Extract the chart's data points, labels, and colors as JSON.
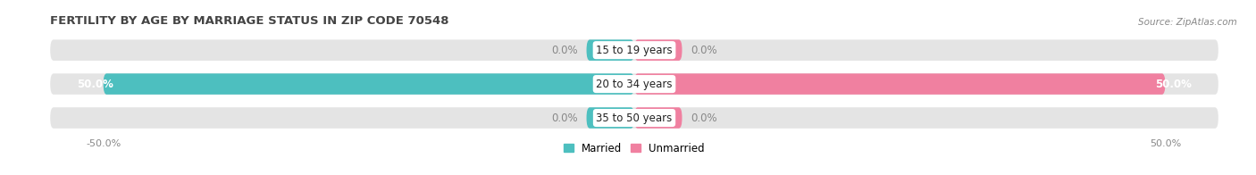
{
  "title": "FERTILITY BY AGE BY MARRIAGE STATUS IN ZIP CODE 70548",
  "source": "Source: ZipAtlas.com",
  "categories": [
    "15 to 19 years",
    "20 to 34 years",
    "35 to 50 years"
  ],
  "married_values": [
    0.0,
    50.0,
    0.0
  ],
  "unmarried_values": [
    0.0,
    50.0,
    0.0
  ],
  "married_color": "#4dbfbf",
  "unmarried_color": "#f080a0",
  "bar_bg_color": "#e4e4e4",
  "bar_height": 0.62,
  "xlim": [
    -55,
    55
  ],
  "title_fontsize": 9.5,
  "source_fontsize": 7.5,
  "label_fontsize": 8.5,
  "tick_fontsize": 8,
  "legend_fontsize": 8.5,
  "bg_color": "#ffffff",
  "tick_label_left": "-50.0%",
  "tick_label_right": "50.0%",
  "zero_segment_size": 4.5,
  "value_color_on_bar": "#ffffff",
  "value_color_outside": "#888888"
}
